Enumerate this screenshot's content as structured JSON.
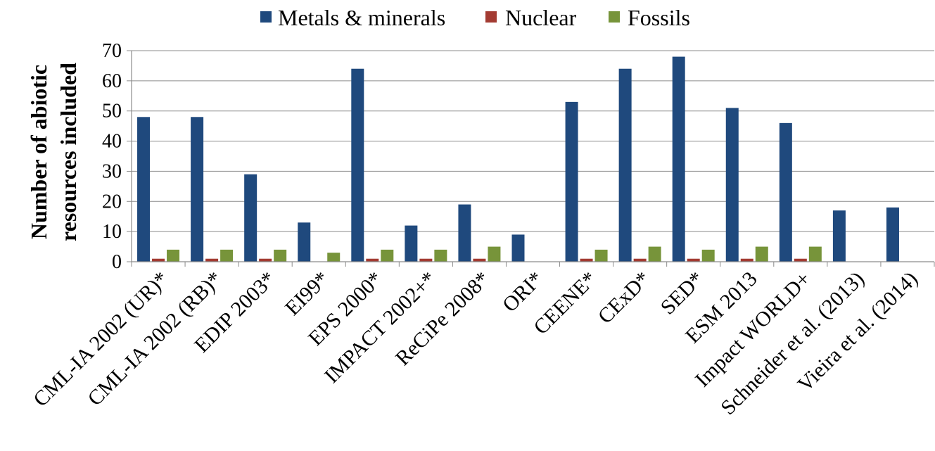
{
  "chart_data": {
    "type": "bar",
    "title": "",
    "xlabel": "",
    "ylabel_lines": [
      "Number of abiotic",
      "resources included"
    ],
    "ylim": [
      0,
      70
    ],
    "y_ticks": [
      0,
      10,
      20,
      30,
      40,
      50,
      60,
      70
    ],
    "grid": "horizontal",
    "legend_position": "top-center",
    "categories": [
      "CML-IA 2002 (UR)*",
      "CML-IA 2002 (RB)*",
      "EDIP 2003*",
      "EI99*",
      "EPS 2000*",
      "IMPACT 2002+*",
      "ReCiPe 2008*",
      "ORI*",
      "CEENE*",
      "CExD*",
      "SED*",
      "ESM 2013",
      "Impact WORLD+",
      "Schneider et al. (2013)",
      "Vieira et al. (2014)"
    ],
    "series": [
      {
        "name": "Metals & minerals",
        "color": "#1F497D",
        "values": [
          48,
          48,
          29,
          13,
          64,
          12,
          19,
          9,
          53,
          64,
          68,
          51,
          46,
          17,
          18
        ]
      },
      {
        "name": "Nuclear",
        "color": "#A33B32",
        "values": [
          1,
          1,
          1,
          0,
          1,
          1,
          1,
          0,
          1,
          1,
          1,
          1,
          1,
          0,
          0
        ]
      },
      {
        "name": "Fossils",
        "color": "#77943A",
        "values": [
          4,
          4,
          4,
          3,
          4,
          4,
          5,
          0,
          4,
          5,
          4,
          5,
          5,
          0,
          0
        ]
      }
    ]
  }
}
